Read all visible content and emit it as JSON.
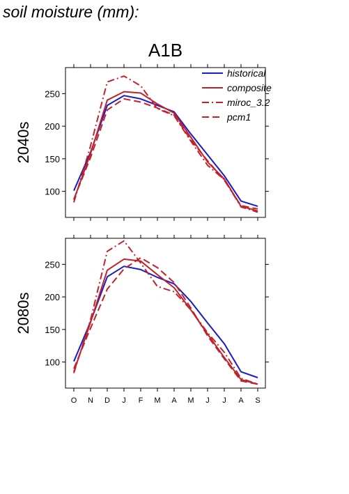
{
  "heading": "soil moisture (mm):",
  "chart_data": {
    "type": "line",
    "title": "A1B",
    "x": [
      "O",
      "N",
      "D",
      "J",
      "F",
      "M",
      "A",
      "M",
      "J",
      "J",
      "A",
      "S"
    ],
    "ylim": [
      60,
      290
    ],
    "yticks": [
      100,
      150,
      200,
      250
    ],
    "legend": {
      "placement": "top-right",
      "entries": [
        {
          "name": "historical",
          "color": "#1a1ac8",
          "dash": "solid"
        },
        {
          "name": "composite",
          "color": "#c0222a",
          "dash": "solid"
        },
        {
          "name": "miroc_3.2",
          "color": "#c0222a",
          "dash": "dashdot"
        },
        {
          "name": "pcm1",
          "color": "#c0222a",
          "dash": "dashed"
        }
      ]
    },
    "panels": [
      {
        "label": "2040s",
        "series": [
          {
            "name": "historical",
            "values": [
              101,
              160,
              232,
              247,
              242,
              232,
              222,
              188,
              156,
              124,
              85,
              77
            ]
          },
          {
            "name": "composite",
            "values": [
              87,
              158,
              240,
              253,
              251,
              234,
              220,
              183,
              145,
              119,
              77,
              70
            ]
          },
          {
            "name": "miroc_3.2",
            "values": [
              83,
              170,
              268,
              277,
              262,
              227,
              216,
              177,
              140,
              118,
              76,
              68
            ]
          },
          {
            "name": "pcm1",
            "values": [
              88,
              152,
              225,
              242,
              237,
              228,
              217,
              179,
              147,
              117,
              78,
              73
            ]
          }
        ]
      },
      {
        "label": "2080s",
        "series": [
          {
            "name": "historical",
            "values": [
              101,
              162,
              231,
              247,
              242,
              230,
              220,
              193,
              160,
              128,
              85,
              76
            ]
          },
          {
            "name": "composite",
            "values": [
              85,
              161,
              241,
              258,
              255,
              234,
              214,
              180,
              143,
              107,
              73,
              66
            ]
          },
          {
            "name": "miroc_3.2",
            "values": [
              83,
              165,
              270,
              286,
              252,
              216,
              208,
              180,
              145,
              115,
              75,
              66
            ]
          },
          {
            "name": "pcm1",
            "values": [
              90,
              152,
              212,
              243,
              260,
              245,
              222,
              183,
              140,
              105,
              71,
              66
            ]
          }
        ]
      }
    ]
  }
}
